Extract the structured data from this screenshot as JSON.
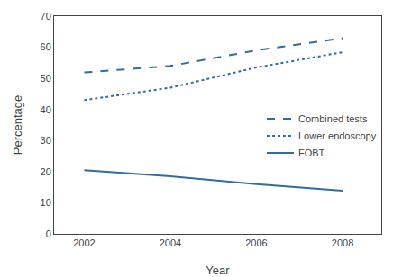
{
  "chart_data": {
    "type": "line",
    "x": [
      2002,
      2004,
      2006,
      2008
    ],
    "series": [
      {
        "name": "Combined tests",
        "color": "#2e6da4",
        "line_style": "dashed",
        "values": [
          51.9,
          54.0,
          59.0,
          62.9
        ]
      },
      {
        "name": "Lower endoscopy",
        "color": "#2e6da4",
        "line_style": "dotted",
        "values": [
          43.0,
          47.0,
          53.5,
          58.4
        ]
      },
      {
        "name": "FOBT",
        "color": "#2e6da4",
        "line_style": "solid",
        "values": [
          20.5,
          18.5,
          16.0,
          13.9
        ]
      }
    ],
    "xlabel": "Year",
    "ylabel": "Percentage",
    "xlim": [
      2001.3,
      2008.9
    ],
    "xticks": [
      2002,
      2004,
      2006,
      2008
    ],
    "ylim": [
      0,
      70
    ],
    "yticks": [
      0,
      10,
      20,
      30,
      40,
      50,
      60,
      70
    ],
    "grid": false,
    "legend": "right"
  }
}
